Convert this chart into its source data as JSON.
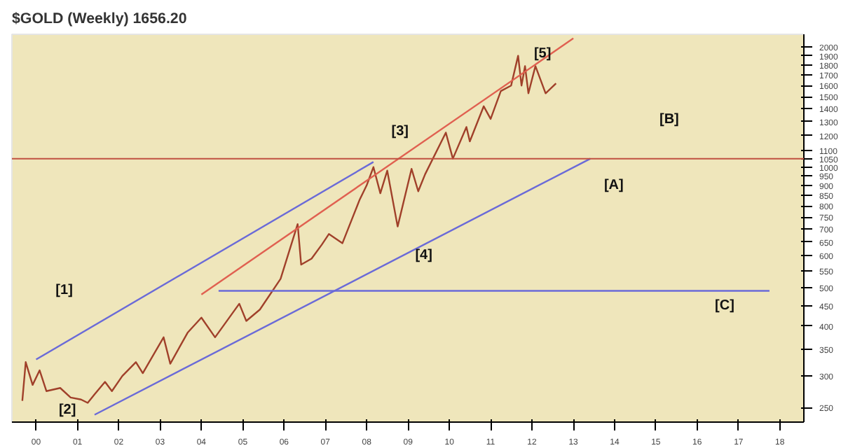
{
  "chart_data": {
    "type": "line",
    "title": "$GOLD (Weekly) 1656.20",
    "log": "y",
    "grid": false,
    "marker": "none",
    "line_style": "solid",
    "xlim": [
      "1999-06",
      "2018-08"
    ],
    "xticks": [
      {
        "value": "2000-01",
        "label": "00"
      },
      {
        "value": "2001-01",
        "label": "01"
      },
      {
        "value": "2002-01",
        "label": "02"
      },
      {
        "value": "2003-01",
        "label": "03"
      },
      {
        "value": "2004-01",
        "label": "04"
      },
      {
        "value": "2005-01",
        "label": "05"
      },
      {
        "value": "2006-01",
        "label": "06"
      },
      {
        "value": "2007-01",
        "label": "07"
      },
      {
        "value": "2008-01",
        "label": "08"
      },
      {
        "value": "2009-01",
        "label": "09"
      },
      {
        "value": "2010-01",
        "label": "10"
      },
      {
        "value": "2011-01",
        "label": "11"
      },
      {
        "value": "2012-01",
        "label": "12"
      },
      {
        "value": "2013-01",
        "label": "13"
      },
      {
        "value": "2014-01",
        "label": "14"
      },
      {
        "value": "2015-01",
        "label": "15"
      },
      {
        "value": "2016-01",
        "label": "16"
      },
      {
        "value": "2017-01",
        "label": "17"
      },
      {
        "value": "2018-01",
        "label": "18"
      }
    ],
    "ylim": [
      230,
      2150
    ],
    "yticks": [
      250,
      300,
      350,
      400,
      450,
      500,
      550,
      600,
      650,
      700,
      750,
      800,
      850,
      900,
      950,
      1000,
      1050,
      1100,
      1200,
      1300,
      1400,
      1500,
      1600,
      1700,
      1800,
      1900,
      2000
    ],
    "series": [
      {
        "color": "#a0402a",
        "x": [
          "1999-09",
          "1999-10",
          "1999-12",
          "2000-02",
          "2000-04",
          "2000-08",
          "2000-11",
          "2001-02",
          "2001-04",
          "2001-06",
          "2001-09",
          "2001-11",
          "2002-02",
          "2002-06",
          "2002-08",
          "2003-02",
          "2003-04",
          "2003-09",
          "2004-01",
          "2004-05",
          "2004-12",
          "2005-02",
          "2005-06",
          "2005-12",
          "2006-05",
          "2006-06",
          "2006-09",
          "2006-12",
          "2007-02",
          "2007-06",
          "2007-11",
          "2008-01",
          "2008-03",
          "2008-05",
          "2008-07",
          "2008-10",
          "2009-02",
          "2009-04",
          "2009-06",
          "2009-12",
          "2010-02",
          "2010-06",
          "2010-07",
          "2010-11",
          "2011-01",
          "2011-04",
          "2011-07",
          "2011-09",
          "2011-10",
          "2011-11",
          "2011-12",
          "2012-02",
          "2012-05",
          "2012-08"
        ],
        "values": [
          260,
          325,
          285,
          310,
          275,
          280,
          265,
          262,
          257,
          270,
          290,
          275,
          300,
          325,
          305,
          375,
          322,
          385,
          420,
          375,
          455,
          412,
          440,
          525,
          720,
          570,
          590,
          640,
          680,
          645,
          830,
          900,
          1000,
          860,
          980,
          710,
          990,
          870,
          960,
          1220,
          1050,
          1260,
          1160,
          1420,
          1320,
          1550,
          1600,
          1900,
          1600,
          1790,
          1530,
          1790,
          1530,
          1620
        ]
      },
      {
        "color": "#6a6ad8",
        "x": [
          "2000-01",
          "2008-03"
        ],
        "values": [
          330,
          1030
        ]
      },
      {
        "color": "#6a6ad8",
        "x": [
          "2001-06",
          "2013-06"
        ],
        "values": [
          240,
          1050
        ]
      },
      {
        "color": "#e06050",
        "x": [
          "2004-01",
          "2013-01"
        ],
        "values": [
          480,
          2100
        ]
      },
      {
        "color": "#6a6ad8",
        "x": [
          "2004-06",
          "2017-10"
        ],
        "values": [
          490,
          490
        ]
      }
    ],
    "ref_lines": [
      {
        "axis": "y",
        "value": 1050,
        "color": "#c05040"
      }
    ],
    "annotations": [
      "[1]",
      "[2]",
      "[3]",
      "[4]",
      "[5]",
      "[A]",
      "[B]",
      "[C]"
    ]
  }
}
